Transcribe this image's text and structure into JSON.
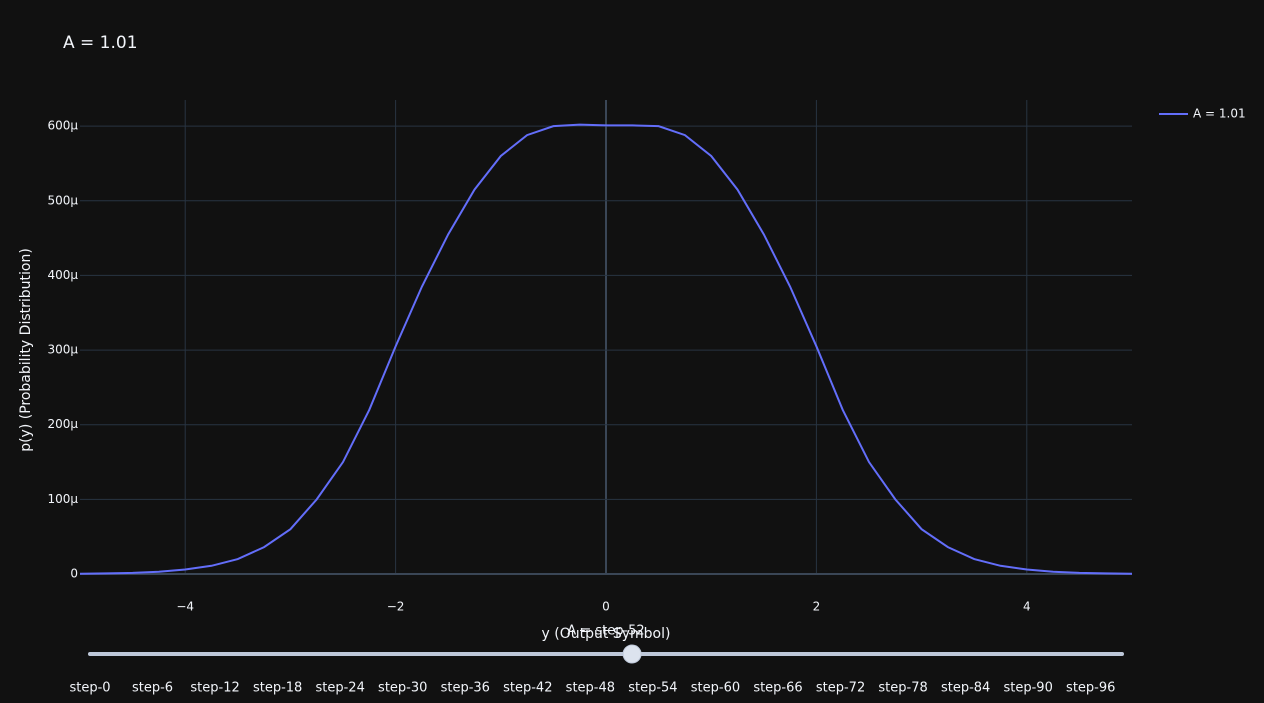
{
  "chart_data": {
    "type": "line",
    "title": "A = 1.01",
    "xlabel": "y (Output Symbol)",
    "ylabel": "p(y) (Probability Distribution)",
    "x": [
      -5,
      -4.75,
      -4.5,
      -4.25,
      -4,
      -3.75,
      -3.5,
      -3.25,
      -3,
      -2.75,
      -2.5,
      -2.25,
      -2,
      -1.75,
      -1.5,
      -1.25,
      -1,
      -0.75,
      -0.5,
      -0.25,
      0,
      0.25,
      0.5,
      0.75,
      1,
      1.25,
      1.5,
      1.75,
      2,
      2.25,
      2.5,
      2.75,
      3,
      3.25,
      3.5,
      3.75,
      4,
      4.25,
      4.5,
      4.75,
      5
    ],
    "series": [
      {
        "name": "A = 1.01",
        "color": "#636efa",
        "values": [
          3e-07,
          8e-07,
          1.5e-06,
          3e-06,
          6e-06,
          1.1e-05,
          2e-05,
          3.6e-05,
          6e-05,
          0.0001,
          0.00015,
          0.00022,
          0.000305,
          0.000385,
          0.000455,
          0.000515,
          0.00056,
          0.000588,
          0.0006,
          0.000602,
          0.000601,
          0.000601,
          0.0006,
          0.000588,
          0.00056,
          0.000515,
          0.000455,
          0.000385,
          0.000305,
          0.00022,
          0.00015,
          0.0001,
          6e-05,
          3.6e-05,
          2e-05,
          1.1e-05,
          6e-06,
          3e-06,
          1.5e-06,
          8e-07,
          3e-07
        ]
      }
    ],
    "xlim": [
      -5,
      5
    ],
    "ylim": [
      0,
      0.000635
    ],
    "xticks": [
      {
        "value": -4,
        "label": "−4"
      },
      {
        "value": -2,
        "label": "−2"
      },
      0,
      2,
      4
    ],
    "yticks": [
      0,
      {
        "value": 0.0001,
        "label": "100μ"
      },
      {
        "value": 0.0002,
        "label": "200μ"
      },
      {
        "value": 0.0003,
        "label": "300μ"
      },
      {
        "value": 0.0004,
        "label": "400μ"
      },
      {
        "value": 0.0005,
        "label": "500μ"
      },
      {
        "value": 0.0006,
        "label": "600μ"
      }
    ],
    "grid": true,
    "legend": "top-right",
    "slider": {
      "currentvalue": "A = step-52",
      "active": 52,
      "range": [
        0,
        99
      ],
      "ticks": [
        {
          "value": 0,
          "label": "step-0"
        },
        {
          "value": 6,
          "label": "step-6"
        },
        {
          "value": 12,
          "label": "step-12"
        },
        {
          "value": 18,
          "label": "step-18"
        },
        {
          "value": 24,
          "label": "step-24"
        },
        {
          "value": 30,
          "label": "step-30"
        },
        {
          "value": 36,
          "label": "step-36"
        },
        {
          "value": 42,
          "label": "step-42"
        },
        {
          "value": 48,
          "label": "step-48"
        },
        {
          "value": 54,
          "label": "step-54"
        },
        {
          "value": 60,
          "label": "step-60"
        },
        {
          "value": 66,
          "label": "step-66"
        },
        {
          "value": 72,
          "label": "step-72"
        },
        {
          "value": 78,
          "label": "step-78"
        },
        {
          "value": 84,
          "label": "step-84"
        },
        {
          "value": 90,
          "label": "step-90"
        },
        {
          "value": 96,
          "label": "step-96"
        }
      ]
    }
  }
}
